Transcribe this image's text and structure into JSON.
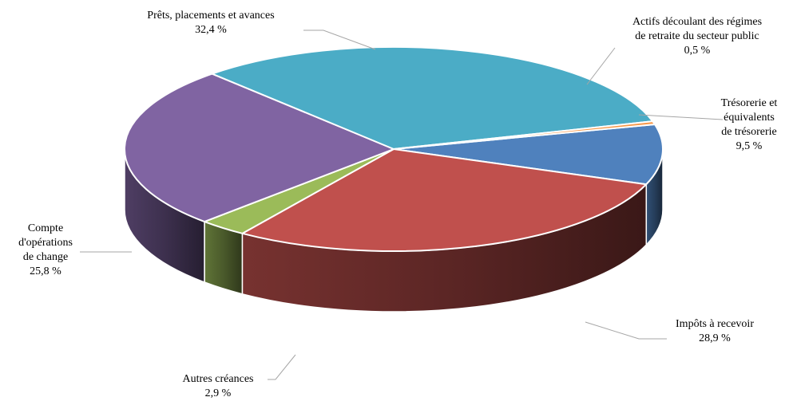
{
  "chart_data": {
    "type": "pie",
    "title": "",
    "slices": [
      {
        "label": "Trésorerie et équivalents de trésorerie",
        "label_lines": [
          "Trésorerie et",
          "équivalents",
          "de trésorerie"
        ],
        "value": 9.5,
        "value_text": "9,5 %",
        "color": "#4f81bd"
      },
      {
        "label": "Impôts à recevoir",
        "label_lines": [
          "Impôts à recevoir"
        ],
        "value": 28.9,
        "value_text": "28,9 %",
        "color": "#c0504d"
      },
      {
        "label": "Autres créances",
        "label_lines": [
          "Autres créances"
        ],
        "value": 2.9,
        "value_text": "2,9 %",
        "color": "#9bbb59"
      },
      {
        "label": "Compte d'opérations de change",
        "label_lines": [
          "Compte",
          "d'opérations",
          "de change"
        ],
        "value": 25.8,
        "value_text": "25,8 %",
        "color": "#8064a2"
      },
      {
        "label": "Prêts, placements et avances",
        "label_lines": [
          "Prêts, placements et avances"
        ],
        "value": 32.4,
        "value_text": "32,4 %",
        "color": "#4bacc6"
      },
      {
        "label": "Actifs découlant des régimes de retraite du secteur public",
        "label_lines": [
          "Actifs découlant des régimes",
          "de retraite du secteur public"
        ],
        "value": 0.5,
        "value_text": "0,5 %",
        "color": "#f79646"
      }
    ]
  }
}
